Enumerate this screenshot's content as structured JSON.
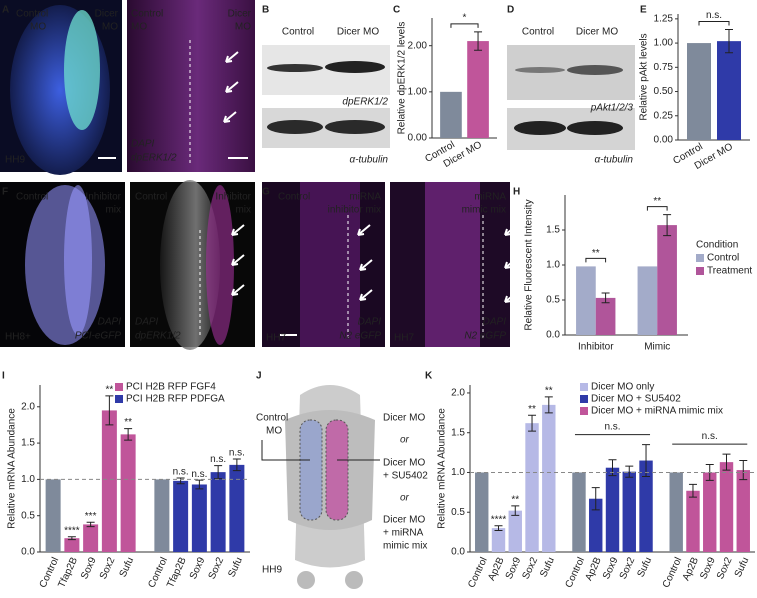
{
  "panel_letters": [
    "A",
    "B",
    "C",
    "D",
    "E",
    "F",
    "G",
    "H",
    "I",
    "J",
    "K"
  ],
  "panel_a": {
    "control": [
      "Control",
      "MO"
    ],
    "dicer": [
      "Dicer",
      "MO"
    ],
    "stage": "HH9",
    "right_control": [
      "Control",
      "MO"
    ],
    "right_dicer": [
      "Dicer",
      "MO"
    ],
    "stain1": "DAPI",
    "stain2": "dpERK1/2"
  },
  "panel_b": {
    "control": "Control",
    "dicer": "Dicer MO",
    "blot1": "dpERK1/2",
    "blot2": "α-tubulin"
  },
  "panel_d": {
    "control": "Control",
    "dicer": "Dicer MO",
    "blot1": "pAkt1/2/3",
    "blot2": "α-tubulin"
  },
  "panel_f": {
    "control": "Control",
    "treatment": [
      "Inhibitor",
      "mix"
    ],
    "stage": "HH8+",
    "stain1": "DAPI",
    "stain2": "PCI-eGFP",
    "right_control": "Control",
    "right_treatment": [
      "Inhibitor",
      "mix"
    ],
    "right_stain1": "DAPI",
    "right_stain2": "dpERK1/2"
  },
  "panel_g": {
    "control": "Control",
    "treatment": [
      "miRNA",
      "inhibitor mix"
    ],
    "stage": "HH7",
    "stain1": "DAPI",
    "stain2": "N2 eGFP",
    "right_treatment": [
      "miRNA",
      "mimic mix"
    ],
    "right_stage": "HH7",
    "right_stain1": "DAPI",
    "right_stain2": "N2 eGFP"
  },
  "panel_j": {
    "control": [
      "Control",
      "MO"
    ],
    "option1": "Dicer MO",
    "or1": "or",
    "option2": [
      "Dicer MO",
      "+ SU5402"
    ],
    "or2": "or",
    "option3": [
      "Dicer MO",
      "+ miRNA",
      "mimic mix"
    ],
    "stage": "HH9"
  },
  "chart_data": [
    {
      "type": "bar",
      "ylabel": "Relative dpERK1/2 levels",
      "categories": [
        "Control",
        "Dicer MO"
      ],
      "values": [
        1.0,
        2.1
      ],
      "errors": [
        null,
        0.2
      ],
      "colors": [
        "#7f8a9b",
        "#c0559a"
      ],
      "annotation": "*",
      "ylim": [
        0,
        2.6
      ],
      "yticks": [
        {
          "value": 0,
          "label": "0.00"
        },
        {
          "value": 1,
          "label": "1.00"
        },
        {
          "value": 2,
          "label": "2.00"
        }
      ]
    },
    {
      "type": "bar",
      "ylabel": "Relative pAkt levels",
      "categories": [
        "Control",
        "Dicer MO"
      ],
      "values": [
        1.0,
        1.02
      ],
      "errors": [
        null,
        0.12
      ],
      "colors": [
        "#7f8a9b",
        "#2f3aa8"
      ],
      "annotation": "n.s.",
      "ylim": [
        0,
        1.3
      ],
      "yticks": [
        {
          "value": 0,
          "label": "0.00"
        },
        0.25,
        {
          "value": 0.5,
          "label": "0.50"
        },
        0.75,
        {
          "value": 1,
          "label": "1.00"
        },
        1.25
      ]
    },
    {
      "type": "grouped-bar",
      "ylabel": "Relative Fluorescent Intensity",
      "categories": [
        "Inhibitor",
        "Mimic"
      ],
      "legend_title": "Condition",
      "annotations": [
        "**",
        "**"
      ],
      "series": [
        {
          "name": "Control",
          "color": "#a3abc9",
          "values": [
            0.98,
            0.98
          ],
          "errors": [
            null,
            null
          ]
        },
        {
          "name": "Treatment",
          "color": "#b0559a",
          "values": [
            0.53,
            1.57
          ],
          "errors": [
            0.07,
            0.15
          ]
        }
      ],
      "ylim": [
        0,
        2.0
      ],
      "yticks": [
        {
          "value": 0,
          "label": "0.0"
        },
        0.5,
        {
          "value": 1,
          "label": "1.0"
        },
        1.5
      ]
    },
    {
      "type": "bar",
      "ylabel": "Relative mRNA Abundance",
      "categories": [
        "Control",
        "Tfap2B",
        "Sox9",
        "Sox2",
        "Sufu",
        "Control",
        "Tfap2B",
        "Sox9",
        "Sox2",
        "Sufu"
      ],
      "values": [
        1.0,
        0.19,
        0.38,
        1.95,
        1.62,
        1.0,
        0.98,
        0.93,
        1.1,
        1.2
      ],
      "errors": [
        null,
        0.02,
        0.03,
        0.2,
        0.08,
        null,
        0.04,
        0.06,
        0.09,
        0.08
      ],
      "annotations": [
        null,
        "****",
        "***",
        "**",
        "**",
        null,
        "n.s.",
        "n.s.",
        "n.s.",
        "n.s."
      ],
      "colors": [
        "#7f8a9b",
        "#c0559a",
        "#c0559a",
        "#c0559a",
        "#c0559a",
        "#7f8a9b",
        "#2f3aa8",
        "#2f3aa8",
        "#2f3aa8",
        "#2f3aa8"
      ],
      "legend": [
        {
          "name": "PCI H2B RFP FGF4",
          "color": "#c0559a"
        },
        {
          "name": "PCI H2B RFP PDFGA",
          "color": "#2f3aa8"
        }
      ],
      "refline": 1,
      "ylim": [
        0,
        2.3
      ],
      "yticks": [
        {
          "value": 0,
          "label": "0.0"
        },
        0.5,
        {
          "value": 1,
          "label": "1.0"
        },
        1.5,
        {
          "value": 2,
          "label": "2.0"
        }
      ]
    },
    {
      "type": "bar",
      "ylabel": "Relative mRNA Abundance",
      "categories": [
        "Control",
        "Ap2B",
        "Sox9",
        "Sox2",
        "Sufu",
        "Control",
        "Ap2B",
        "Sox9",
        "Sox2",
        "Sufu",
        "Control",
        "Ap2B",
        "Sox9",
        "Sox2",
        "Sufu"
      ],
      "values": [
        1.0,
        0.3,
        0.52,
        1.62,
        1.85,
        1.0,
        0.67,
        1.06,
        1.01,
        1.15,
        1.0,
        0.77,
        1.0,
        1.13,
        1.03
      ],
      "errors": [
        null,
        0.03,
        0.06,
        0.1,
        0.1,
        null,
        0.14,
        0.1,
        0.07,
        0.2,
        null,
        0.08,
        0.1,
        0.1,
        0.12
      ],
      "annotations": [
        null,
        "****",
        "**",
        "**",
        "**",
        null,
        null,
        null,
        null,
        null,
        null,
        null,
        null,
        null,
        null
      ],
      "group_annotations": [
        null,
        "n.s.",
        "n.s."
      ],
      "colors": [
        "#7f8a9b",
        "#b6b9e6",
        "#b6b9e6",
        "#b6b9e6",
        "#b6b9e6",
        "#7f8a9b",
        "#2f3aa8",
        "#2f3aa8",
        "#2f3aa8",
        "#2f3aa8",
        "#7f8a9b",
        "#c0559a",
        "#c0559a",
        "#c0559a",
        "#c0559a"
      ],
      "legend": [
        {
          "name": "Dicer MO only",
          "color": "#b6b9e6"
        },
        {
          "name": "Dicer MO + SU5402",
          "color": "#2f3aa8"
        },
        {
          "name": "Dicer MO + miRNA mimic mix",
          "color": "#c0559a"
        }
      ],
      "refline": 1,
      "ylim": [
        0,
        2.1
      ],
      "yticks": [
        {
          "value": 0,
          "label": "0.0"
        },
        0.5,
        {
          "value": 1,
          "label": "1.0"
        },
        1.5,
        {
          "value": 2,
          "label": "2.0"
        }
      ]
    }
  ]
}
